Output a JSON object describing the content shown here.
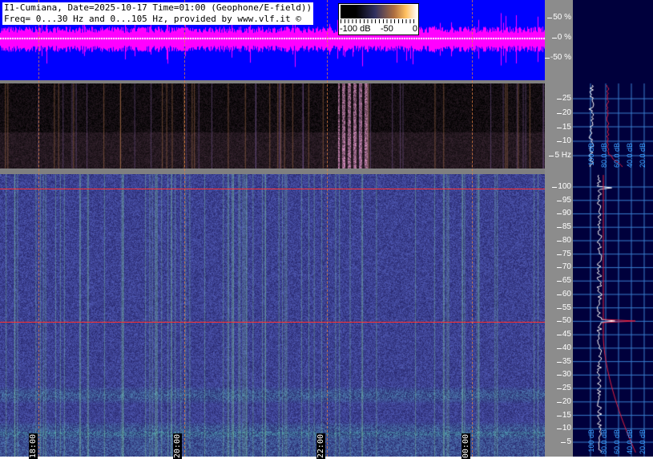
{
  "header": {
    "line1": "I1-Cumiana, Date=2025-10-17 Time=01:00 (Geophone/E-field))",
    "line2": "Freq= 0...30 Hz and 0...105 Hz, provided by www.vlf.it ©"
  },
  "colorbar": {
    "labels": [
      "-100 dB",
      "-50",
      "0"
    ]
  },
  "amplitude_axis": [
    "50 %",
    "0 %",
    "-50 %"
  ],
  "upper_freq_axis": [
    "25",
    "20",
    "15",
    "10",
    "5 Hz"
  ],
  "lower_freq_axis": [
    "100",
    "95",
    "90",
    "85",
    "80",
    "75",
    "70",
    "65",
    "60",
    "55",
    "50",
    "45",
    "40",
    "35",
    "30",
    "25",
    "20",
    "15",
    "10",
    "5"
  ],
  "time_labels": [
    "18:00",
    "20:00",
    "22:00",
    "00:00"
  ],
  "side_db_labels": [
    "100 dB",
    "80.0 dB",
    "60.0 dB",
    "40.0 dB",
    "20.0 dB"
  ],
  "colors": {
    "waveform_bg": "#0000ff",
    "waveform": "#ff00ff",
    "mains_line": "#ff3030",
    "side_bg": "#00003c"
  }
}
